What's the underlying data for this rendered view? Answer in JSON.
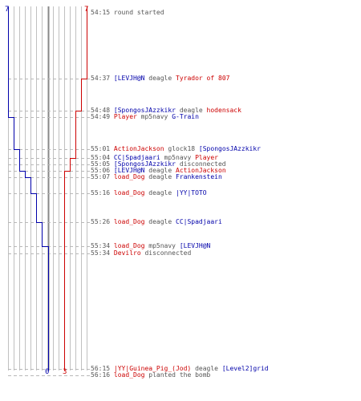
{
  "colors": {
    "red": "#cc0000",
    "blue": "#0000aa",
    "grid": "#c0c0c0",
    "center": "#888888",
    "text": "#555555"
  },
  "scores": {
    "top_left": "7",
    "top_right": "7",
    "bottom_blue": "0",
    "bottom_red": "3"
  },
  "events": [
    {
      "time": "54:15",
      "parts": [
        {
          "text": "round started",
          "team": "none"
        }
      ]
    },
    {
      "time": "54:37",
      "parts": [
        {
          "text": "[LEVJH@N",
          "team": "blue"
        },
        {
          "text": "deagle",
          "team": "none"
        },
        {
          "text": "Tyrador of 807",
          "team": "red"
        }
      ]
    },
    {
      "time": "54:48",
      "parts": [
        {
          "text": "[SpongosJAzzkikr",
          "team": "blue"
        },
        {
          "text": "deagle",
          "team": "none"
        },
        {
          "text": "hodensack",
          "team": "red"
        }
      ]
    },
    {
      "time": "54:49",
      "parts": [
        {
          "text": "Player",
          "team": "red"
        },
        {
          "text": "mp5navy",
          "team": "none"
        },
        {
          "text": "G-Train",
          "team": "blue"
        }
      ]
    },
    {
      "time": "55:01",
      "parts": [
        {
          "text": "ActionJackson",
          "team": "red"
        },
        {
          "text": "glock18",
          "team": "none"
        },
        {
          "text": "[SpongosJAzzkikr",
          "team": "blue"
        }
      ]
    },
    {
      "time": "55:04",
      "parts": [
        {
          "text": "CC|Spadjaari",
          "team": "blue"
        },
        {
          "text": "mp5navy",
          "team": "none"
        },
        {
          "text": "Player",
          "team": "red"
        }
      ]
    },
    {
      "time": "55:05",
      "parts": [
        {
          "text": "[SpongosJAzzkikr",
          "team": "blue"
        },
        {
          "text": "disconnected",
          "team": "none"
        }
      ]
    },
    {
      "time": "55:06",
      "parts": [
        {
          "text": "[LEVJH@N",
          "team": "blue"
        },
        {
          "text": "deagle",
          "team": "none"
        },
        {
          "text": "ActionJackson",
          "team": "red"
        }
      ]
    },
    {
      "time": "55:07",
      "parts": [
        {
          "text": "load_Dog",
          "team": "red"
        },
        {
          "text": "deagle",
          "team": "none"
        },
        {
          "text": "Frankenstein",
          "team": "blue"
        }
      ]
    },
    {
      "time": "55:16",
      "parts": [
        {
          "text": "load_Dog",
          "team": "red"
        },
        {
          "text": "deagle",
          "team": "none"
        },
        {
          "text": "|YY|TOTO",
          "team": "blue"
        }
      ]
    },
    {
      "time": "55:26",
      "parts": [
        {
          "text": "load_Dog",
          "team": "red"
        },
        {
          "text": "deagle",
          "team": "none"
        },
        {
          "text": "CC|Spadjaari",
          "team": "blue"
        }
      ]
    },
    {
      "time": "55:34",
      "parts": [
        {
          "text": "load_Dog",
          "team": "red"
        },
        {
          "text": "mp5navy",
          "team": "none"
        },
        {
          "text": "[LEVJH@N",
          "team": "blue"
        }
      ]
    },
    {
      "time": "55:34",
      "parts": [
        {
          "text": "Devilro",
          "team": "red"
        },
        {
          "text": "disconnected",
          "team": "none"
        }
      ]
    },
    {
      "time": "56:15",
      "parts": [
        {
          "text": "|YY|Guinea_Pig_(Jod)",
          "team": "red"
        },
        {
          "text": "deagle",
          "team": "none"
        },
        {
          "text": "[Level2]grid",
          "team": "blue"
        }
      ]
    },
    {
      "time": "56:16",
      "parts": [
        {
          "text": "load_Dog",
          "team": "red"
        },
        {
          "text": "planted the bomb",
          "team": "none"
        }
      ]
    }
  ]
}
